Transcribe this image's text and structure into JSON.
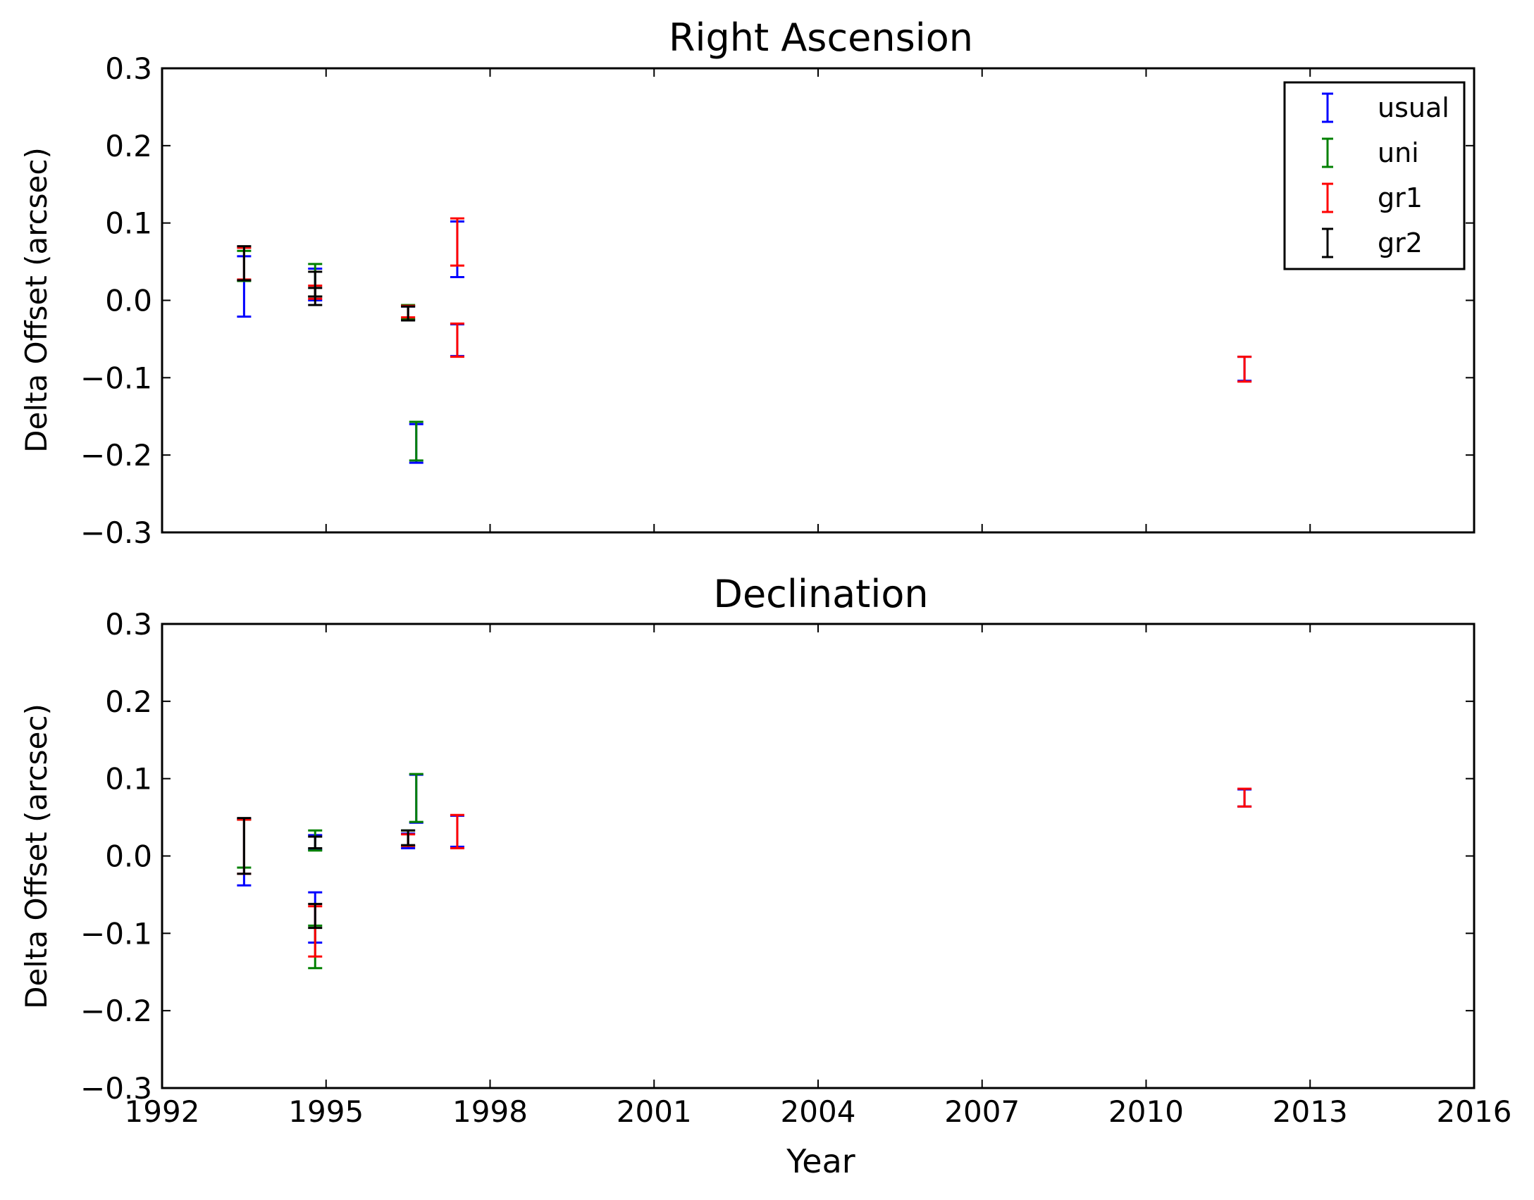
{
  "figure": {
    "xlabel": "Year",
    "legend_entries": [
      {
        "name": "usual",
        "color": "#0000ff"
      },
      {
        "name": "uni",
        "color": "#008000"
      },
      {
        "name": "gr1",
        "color": "#ff0000"
      },
      {
        "name": "gr2",
        "color": "#000000"
      }
    ],
    "legend_placement": "top-right of first panel"
  },
  "chart_data": [
    {
      "type": "scatter",
      "style": "errorbar",
      "title": "Right Ascension",
      "xlabel": "",
      "ylabel": "Delta Offset (arcsec)",
      "xlim": [
        1992,
        2016
      ],
      "ylim": [
        -0.3,
        0.3
      ],
      "xticks": [
        "1992",
        "1995",
        "1998",
        "2001",
        "2004",
        "2007",
        "2010",
        "2013",
        "2016"
      ],
      "yticks": [
        "0.3",
        "0.2",
        "0.1",
        "0.0",
        "−0.1",
        "−0.2",
        "−0.3"
      ],
      "grid": false,
      "legend": "top-right",
      "series": [
        {
          "name": "usual",
          "color": "#0000ff",
          "points": [
            {
              "x": 1993.5,
              "low": -0.021,
              "high": 0.057
            },
            {
              "x": 1994.8,
              "low": 0.0,
              "high": 0.041
            },
            {
              "x": 1996.5,
              "low": -0.025,
              "high": -0.008
            },
            {
              "x": 1996.65,
              "low": -0.21,
              "high": -0.16
            },
            {
              "x": 1997.4,
              "low": 0.03,
              "high": 0.102
            },
            {
              "x": 1997.4,
              "low": -0.072,
              "high": -0.031
            },
            {
              "x": 2011.8,
              "low": -0.104,
              "high": -0.073
            }
          ]
        },
        {
          "name": "uni",
          "color": "#008000",
          "points": [
            {
              "x": 1993.5,
              "low": 0.025,
              "high": 0.064
            },
            {
              "x": 1994.8,
              "low": 0.005,
              "high": 0.047
            },
            {
              "x": 1996.5,
              "low": -0.024,
              "high": -0.006
            },
            {
              "x": 1996.65,
              "low": -0.207,
              "high": -0.157
            }
          ]
        },
        {
          "name": "gr1",
          "color": "#ff0000",
          "points": [
            {
              "x": 1993.5,
              "low": 0.027,
              "high": 0.068
            },
            {
              "x": 1994.8,
              "low": 0.002,
              "high": 0.019
            },
            {
              "x": 1996.5,
              "low": -0.022,
              "high": -0.007
            },
            {
              "x": 1997.4,
              "low": 0.045,
              "high": 0.106
            },
            {
              "x": 1997.4,
              "low": -0.073,
              "high": -0.03
            },
            {
              "x": 2011.8,
              "low": -0.105,
              "high": -0.073
            }
          ]
        },
        {
          "name": "gr2",
          "color": "#000000",
          "points": [
            {
              "x": 1993.5,
              "low": 0.026,
              "high": 0.07
            },
            {
              "x": 1994.8,
              "low": -0.006,
              "high": 0.037
            },
            {
              "x": 1994.8,
              "low": 0.005,
              "high": 0.016
            },
            {
              "x": 1996.5,
              "low": -0.026,
              "high": -0.008
            }
          ]
        }
      ]
    },
    {
      "type": "scatter",
      "style": "errorbar",
      "title": "Declination",
      "xlabel": "Year",
      "ylabel": "Delta Offset (arcsec)",
      "xlim": [
        1992,
        2016
      ],
      "ylim": [
        -0.3,
        0.3
      ],
      "xticks": [
        "1992",
        "1995",
        "1998",
        "2001",
        "2004",
        "2007",
        "2010",
        "2013",
        "2016"
      ],
      "yticks": [
        "0.3",
        "0.2",
        "0.1",
        "0.0",
        "−0.1",
        "−0.2",
        "−0.3"
      ],
      "grid": false,
      "series": [
        {
          "name": "usual",
          "color": "#0000ff",
          "points": [
            {
              "x": 1993.5,
              "low": -0.038,
              "high": 0.048
            },
            {
              "x": 1994.8,
              "low": 0.008,
              "high": 0.027
            },
            {
              "x": 1994.8,
              "low": -0.112,
              "high": -0.047
            },
            {
              "x": 1996.5,
              "low": 0.01,
              "high": 0.029
            },
            {
              "x": 1996.65,
              "low": 0.043,
              "high": 0.105
            },
            {
              "x": 1997.4,
              "low": 0.012,
              "high": 0.052
            },
            {
              "x": 2011.8,
              "low": 0.064,
              "high": 0.086
            }
          ]
        },
        {
          "name": "uni",
          "color": "#008000",
          "points": [
            {
              "x": 1993.5,
              "low": -0.015,
              "high": 0.047
            },
            {
              "x": 1994.8,
              "low": 0.007,
              "high": 0.033
            },
            {
              "x": 1994.8,
              "low": -0.145,
              "high": -0.09
            },
            {
              "x": 1996.5,
              "low": 0.013,
              "high": 0.033
            },
            {
              "x": 1996.65,
              "low": 0.044,
              "high": 0.106
            }
          ]
        },
        {
          "name": "gr1",
          "color": "#ff0000",
          "points": [
            {
              "x": 1993.5,
              "low": -0.023,
              "high": 0.047
            },
            {
              "x": 1994.8,
              "low": -0.13,
              "high": -0.065
            },
            {
              "x": 1996.5,
              "low": 0.013,
              "high": 0.028
            },
            {
              "x": 1997.4,
              "low": 0.01,
              "high": 0.053
            },
            {
              "x": 2011.8,
              "low": 0.064,
              "high": 0.087
            }
          ]
        },
        {
          "name": "gr2",
          "color": "#000000",
          "points": [
            {
              "x": 1993.5,
              "low": -0.023,
              "high": 0.049
            },
            {
              "x": 1994.8,
              "low": 0.01,
              "high": 0.025
            },
            {
              "x": 1994.8,
              "low": -0.093,
              "high": -0.062
            },
            {
              "x": 1996.5,
              "low": 0.014,
              "high": 0.033
            }
          ]
        }
      ]
    }
  ]
}
